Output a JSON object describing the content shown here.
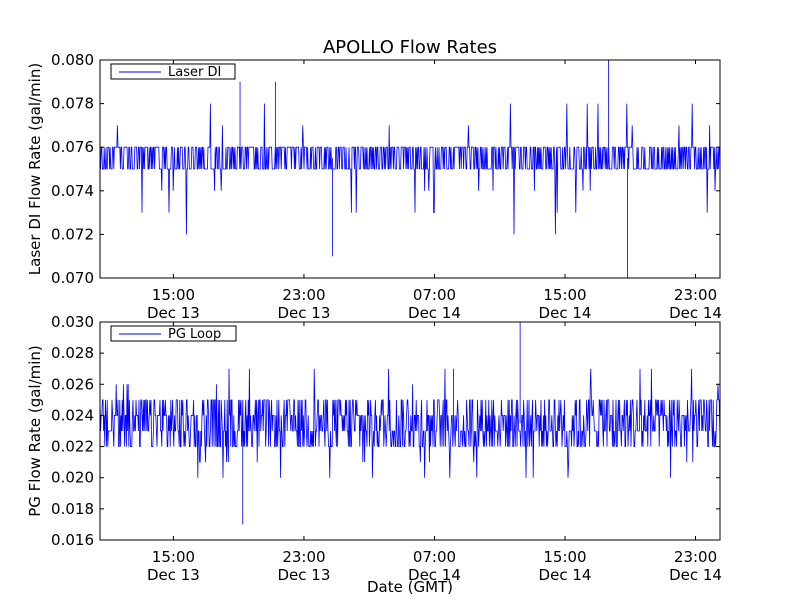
{
  "chart_data": [
    {
      "type": "line",
      "title": "APOLLO Flow Rates",
      "xlabel": "",
      "ylabel": "Laser DI Flow Rate (gal/min)",
      "xlim": [
        "Dec 13 10:30",
        "Dec 15 00:30"
      ],
      "ylim": [
        0.07,
        0.08
      ],
      "yticks": [
        "0.070",
        "0.072",
        "0.074",
        "0.076",
        "0.078",
        "0.080"
      ],
      "xticks": [
        {
          "time": "15:00",
          "date": "Dec 13"
        },
        {
          "time": "23:00",
          "date": "Dec 13"
        },
        {
          "time": "07:00",
          "date": "Dec 14"
        },
        {
          "time": "15:00",
          "date": "Dec 14"
        },
        {
          "time": "23:00",
          "date": "Dec 14"
        }
      ],
      "legend_position": "top-left",
      "grid": false,
      "series": [
        {
          "name": "Laser DI",
          "color": "#0000ff",
          "baseline": [
            0.075,
            0.076
          ],
          "min": 0.07,
          "max": 0.08,
          "spikes": [
            {
              "x": "Dec 13 19:05",
              "y": 0.079
            },
            {
              "x": "Dec 13 21:15",
              "y": 0.079
            },
            {
              "x": "Dec 14 00:45",
              "y": 0.071
            },
            {
              "x": "Dec 14 17:40",
              "y": 0.08
            },
            {
              "x": "Dec 14 18:50",
              "y": 0.07
            }
          ]
        }
      ]
    },
    {
      "type": "line",
      "title": "",
      "xlabel": "Date (GMT)",
      "ylabel": "PG Flow Rate (gal/min)",
      "xlim": [
        "Dec 13 10:30",
        "Dec 15 00:30"
      ],
      "ylim": [
        0.016,
        0.03
      ],
      "yticks": [
        "0.016",
        "0.018",
        "0.020",
        "0.022",
        "0.024",
        "0.026",
        "0.028",
        "0.030"
      ],
      "xticks": [
        {
          "time": "15:00",
          "date": "Dec 13"
        },
        {
          "time": "23:00",
          "date": "Dec 13"
        },
        {
          "time": "07:00",
          "date": "Dec 14"
        },
        {
          "time": "15:00",
          "date": "Dec 14"
        },
        {
          "time": "23:00",
          "date": "Dec 14"
        }
      ],
      "legend_position": "top-left",
      "grid": false,
      "series": [
        {
          "name": "PG Loop",
          "color": "#0000ff",
          "baseline": [
            0.022,
            0.025
          ],
          "min": 0.017,
          "max": 0.03,
          "spikes": [
            {
              "x": "Dec 13 19:15",
              "y": 0.017
            },
            {
              "x": "Dec 14 08:10",
              "y": 0.027
            },
            {
              "x": "Dec 14 12:15",
              "y": 0.03
            }
          ]
        }
      ]
    }
  ]
}
